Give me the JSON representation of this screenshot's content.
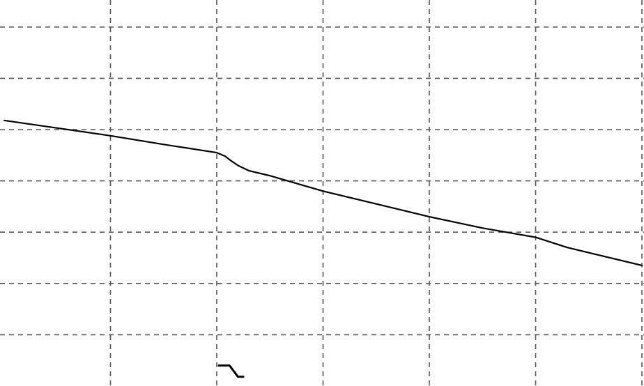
{
  "chart_data": {
    "type": "line",
    "title": "",
    "xlabel": "",
    "ylabel": "",
    "grid": true,
    "legend": "none",
    "xlim": [
      0,
      6
    ],
    "ylim": [
      0,
      7.2
    ],
    "x_gridlines": [
      1,
      2,
      3,
      4,
      5,
      6
    ],
    "y_gridlines": [
      1,
      2,
      3,
      4,
      5,
      6,
      7
    ],
    "series": [
      {
        "color": "#000000",
        "x": [
          0,
          0.5,
          1,
          1.5,
          2,
          2.08,
          2.13,
          2.2,
          2.3,
          2.5,
          3,
          3.5,
          4,
          4.5,
          5,
          5.3,
          5.6,
          6
        ],
        "y": [
          5.18,
          5.03,
          4.88,
          4.71,
          4.55,
          4.48,
          4.4,
          4.3,
          4.2,
          4.1,
          3.8,
          3.55,
          3.3,
          3.08,
          2.9,
          2.7,
          2.55,
          2.35
        ]
      }
    ],
    "annotations": [
      {
        "type": "step-marker",
        "color": "#000000",
        "x": [
          2.02,
          2.12,
          2.2,
          2.25
        ],
        "y": [
          0.4,
          0.4,
          0.18,
          0.18
        ]
      }
    ]
  }
}
